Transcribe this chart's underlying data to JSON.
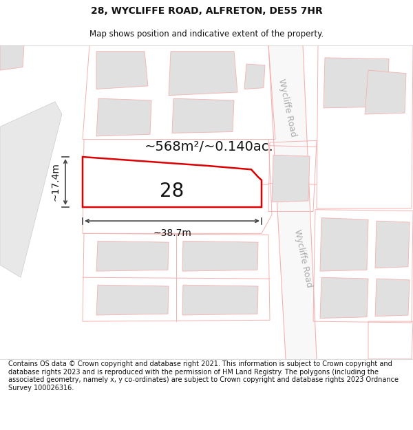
{
  "title": "28, WYCLIFFE ROAD, ALFRETON, DE55 7HR",
  "subtitle": "Map shows position and indicative extent of the property.",
  "footer": "Contains OS data © Crown copyright and database right 2021. This information is subject to Crown copyright and database rights 2023 and is reproduced with the permission of HM Land Registry. The polygons (including the associated geometry, namely x, y co-ordinates) are subject to Crown copyright and database rights 2023 Ordnance Survey 100026316.",
  "area_label": "~568m²/~0.140ac.",
  "width_label": "~38.7m",
  "height_label": "~17.4m",
  "number_label": "28",
  "road_label": "Wycliffe Road",
  "bg_color": "#ffffff",
  "map_bg": "#ffffff",
  "plot_fill": "#ffffff",
  "plot_edge": "#dd0000",
  "building_fill": "#e0e0e0",
  "building_edge": "#f5b0b0",
  "parcel_edge": "#f5b0b0",
  "road_fill": "#ffffff",
  "dim_line_color": "#444444",
  "title_fontsize": 10,
  "subtitle_fontsize": 8.5,
  "footer_fontsize": 7,
  "area_fontsize": 14,
  "number_fontsize": 20,
  "road_fontsize": 9
}
